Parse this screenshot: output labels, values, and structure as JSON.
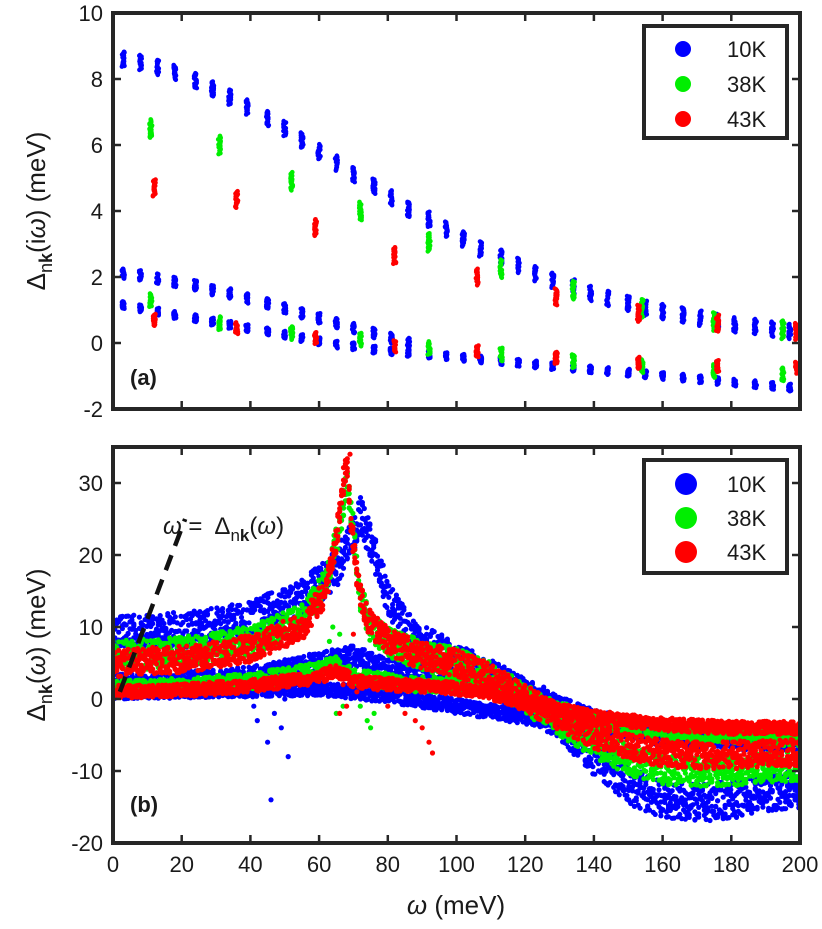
{
  "chart_data": [
    {
      "type": "scatter",
      "panel_label": "(a)",
      "ylabel_parts": [
        "Δ",
        "n",
        "k",
        "(i",
        "ω",
        ") (meV)"
      ],
      "xlim": [
        0,
        200
      ],
      "ylim": [
        -2,
        10
      ],
      "yticks": [
        -2,
        0,
        2,
        4,
        6,
        8,
        10
      ],
      "legend_position": "top-right",
      "series": [
        {
          "name": "10K",
          "color": "#0000ff",
          "branches": [
            {
              "x": [
                3,
                8,
                13,
                18,
                24,
                29,
                34,
                39,
                45,
                50,
                55,
                60,
                65,
                70,
                76,
                81,
                86,
                92,
                97,
                102,
                107,
                113,
                118,
                123,
                128,
                134,
                139,
                144,
                150,
                155,
                160,
                166,
                171,
                176,
                181,
                187,
                192,
                197
              ],
              "y": [
                8.6,
                8.5,
                8.35,
                8.2,
                7.95,
                7.7,
                7.45,
                7.15,
                6.8,
                6.5,
                6.15,
                5.8,
                5.45,
                5.1,
                4.75,
                4.4,
                4.05,
                3.75,
                3.45,
                3.15,
                2.85,
                2.6,
                2.35,
                2.1,
                1.9,
                1.7,
                1.5,
                1.35,
                1.2,
                1.05,
                0.95,
                0.85,
                0.75,
                0.65,
                0.55,
                0.5,
                0.42,
                0.35
              ],
              "spread": 0.45
            },
            {
              "x": [
                3,
                8,
                13,
                18,
                24,
                29,
                34,
                39,
                45,
                50,
                55,
                60,
                65,
                70,
                76,
                81,
                86
              ],
              "y": [
                2.1,
                2.05,
                1.95,
                1.85,
                1.75,
                1.6,
                1.5,
                1.35,
                1.2,
                1.05,
                0.9,
                0.75,
                0.6,
                0.45,
                0.3,
                0.15,
                0.0
              ],
              "spread": 0.3
            },
            {
              "x": [
                3,
                8,
                13,
                18,
                24,
                29,
                34,
                39,
                45,
                50,
                55,
                60,
                65,
                70,
                76,
                81,
                86,
                92,
                97,
                102,
                107,
                113,
                118,
                123,
                128,
                134,
                139,
                144,
                150,
                155,
                160,
                166,
                171,
                176,
                181,
                187,
                192,
                197
              ],
              "y": [
                1.15,
                1.05,
                0.95,
                0.85,
                0.75,
                0.65,
                0.55,
                0.45,
                0.35,
                0.25,
                0.15,
                0.05,
                -0.05,
                -0.1,
                -0.2,
                -0.25,
                -0.3,
                -0.35,
                -0.4,
                -0.45,
                -0.5,
                -0.55,
                -0.6,
                -0.65,
                -0.7,
                -0.75,
                -0.8,
                -0.85,
                -0.9,
                -0.95,
                -1.0,
                -1.05,
                -1.1,
                -1.15,
                -1.2,
                -1.25,
                -1.3,
                -1.35
              ],
              "spread": 0.22
            }
          ]
        },
        {
          "name": "38K",
          "color": "#00ee00",
          "branches": [
            {
              "x": [
                11,
                31,
                52,
                72,
                92,
                113,
                134,
                154,
                175,
                195
              ],
              "y": [
                6.5,
                6.0,
                4.9,
                4.0,
                3.05,
                2.25,
                1.6,
                1.05,
                0.65,
                0.4
              ],
              "spread": 0.55
            },
            {
              "x": [
                11,
                31,
                52,
                72,
                92,
                113,
                134,
                154,
                175,
                195
              ],
              "y": [
                1.3,
                0.6,
                0.3,
                0.1,
                -0.15,
                -0.35,
                -0.55,
                -0.7,
                -0.85,
                -0.95
              ],
              "spread": 0.4
            }
          ]
        },
        {
          "name": "43K",
          "color": "#ff0000",
          "branches": [
            {
              "x": [
                12,
                36,
                59,
                82,
                106,
                129,
                153,
                176,
                199
              ],
              "y": [
                4.7,
                4.35,
                3.5,
                2.65,
                2.0,
                1.4,
                0.9,
                0.6,
                0.35
              ],
              "spread": 0.5
            },
            {
              "x": [
                12,
                36,
                59,
                82,
                106,
                129,
                153,
                176,
                199
              ],
              "y": [
                0.7,
                0.45,
                0.15,
                -0.1,
                -0.25,
                -0.45,
                -0.6,
                -0.7,
                -0.75
              ],
              "spread": 0.35
            }
          ]
        }
      ]
    },
    {
      "type": "scatter",
      "panel_label": "(b)",
      "xlabel_parts": [
        "ω",
        " (meV)"
      ],
      "ylabel_parts": [
        "Δ",
        "n",
        "k",
        "(",
        "ω",
        ") (meV)"
      ],
      "xlim": [
        0,
        200
      ],
      "ylim": [
        -20,
        35
      ],
      "xticks": [
        0,
        20,
        40,
        60,
        80,
        100,
        120,
        140,
        160,
        180,
        200
      ],
      "yticks": [
        -20,
        -10,
        0,
        10,
        20,
        30
      ],
      "legend_position": "top-right",
      "annotation_parts": [
        "ω",
        " =  ",
        "Δ",
        "n",
        "k",
        "(",
        "ω",
        ")"
      ],
      "annotation_line": {
        "x": [
          2,
          21
        ],
        "y": [
          1,
          25
        ]
      },
      "series": [
        {
          "name": "10K",
          "color": "#0000ff",
          "bands": [
            {
              "x": [
                0,
                20,
                40,
                55,
                65,
                70,
                72,
                75,
                80,
                85,
                90,
                95,
                100,
                110,
                120,
                130,
                140,
                150,
                160,
                170,
                180,
                190,
                200
              ],
              "y": [
                9,
                9.5,
                11,
                14,
                18,
                23,
                25.5,
                22,
                14,
                10,
                8,
                6.5,
                5,
                3,
                0,
                -3,
                -8,
                -12,
                -14,
                -14.5,
                -14,
                -13,
                -12.5
              ],
              "w": 2.6
            },
            {
              "x": [
                0,
                20,
                40,
                60,
                70,
                80,
                90,
                100,
                110,
                120,
                130,
                140,
                160,
                180,
                200
              ],
              "y": [
                2,
                2.3,
                3,
                5,
                6,
                4,
                3.5,
                3,
                2.5,
                1.5,
                -1,
                -3,
                -5,
                -5.5,
                -6
              ],
              "w": 1.5
            },
            {
              "x": [
                0,
                20,
                40,
                60,
                80,
                100,
                120,
                130,
                140,
                160,
                180,
                200
              ],
              "y": [
                1,
                1.1,
                1.3,
                1.5,
                0.5,
                -1,
                -2.5,
                -3,
                -3.5,
                -4.5,
                -5,
                -5.5
              ],
              "w": 1.0
            }
          ],
          "scatter": {
            "x": [
              41,
              42,
              44,
              45,
              46,
              47,
              48,
              49,
              50,
              51,
              52
            ],
            "y": [
              -1,
              -3,
              1,
              -6,
              -14,
              -2,
              2,
              -4,
              0,
              -8,
              1
            ]
          }
        },
        {
          "name": "38K",
          "color": "#00ee00",
          "bands": [
            {
              "x": [
                0,
                20,
                40,
                55,
                62,
                66,
                68,
                70,
                72,
                75,
                80,
                85,
                90,
                100,
                110,
                120,
                130,
                140,
                150,
                160,
                170,
                180,
                190,
                200
              ],
              "y": [
                6,
                6.5,
                8,
                11,
                16,
                24,
                30,
                24,
                14,
                10,
                8,
                7,
                6,
                5,
                3,
                0,
                -3,
                -6,
                -8.5,
                -9.8,
                -10,
                -10,
                -9.5,
                -9.5
              ],
              "w": 2.1
            },
            {
              "x": [
                0,
                20,
                40,
                60,
                65,
                70,
                80,
                90,
                100,
                110,
                120,
                130,
                140,
                160,
                180,
                200
              ],
              "y": [
                1.5,
                1.8,
                2.5,
                4,
                5,
                3,
                2.5,
                2,
                2,
                1.5,
                0.5,
                -1.5,
                -3,
                -4.5,
                -5,
                -5.5
              ],
              "w": 1.1
            }
          ],
          "scatter": {
            "x": [
              63,
              64,
              65,
              66,
              67,
              72,
              74,
              75,
              76
            ],
            "y": [
              8,
              10,
              -2,
              9,
              -1,
              -1,
              -3,
              -4,
              -2
            ]
          }
        },
        {
          "name": "43K",
          "color": "#ff0000",
          "bands": [
            {
              "x": [
                0,
                20,
                40,
                55,
                62,
                65,
                67,
                68,
                69,
                71,
                74,
                80,
                85,
                90,
                100,
                110,
                120,
                130,
                140,
                150,
                160,
                170,
                180,
                190,
                200
              ],
              "y": [
                5,
                5.5,
                7,
                10,
                15,
                22,
                30,
                33,
                26,
                17,
                11,
                8,
                7,
                6,
                5,
                3,
                0,
                -2.5,
                -5,
                -6.5,
                -7.5,
                -7.8,
                -7.8,
                -7.5,
                -7.5
              ],
              "w": 1.9
            },
            {
              "x": [
                0,
                20,
                40,
                60,
                65,
                70,
                80,
                90,
                100,
                110,
                120,
                130,
                140,
                160,
                180,
                200
              ],
              "y": [
                1,
                1.2,
                1.8,
                3,
                4,
                2.5,
                2,
                1.8,
                1.5,
                0.8,
                -0.5,
                -1.5,
                -2.5,
                -3.5,
                -4,
                -4
              ],
              "w": 0.9
            }
          ],
          "scatter": {
            "x": [
              66,
              67,
              68,
              69,
              70,
              71,
              72,
              73,
              80,
              85,
              88,
              90,
              92,
              93
            ],
            "y": [
              -2,
              2,
              -1,
              34,
              9,
              1,
              14,
              2,
              -1,
              -2,
              -3,
              -4,
              -6,
              -7.5
            ]
          }
        }
      ]
    }
  ]
}
